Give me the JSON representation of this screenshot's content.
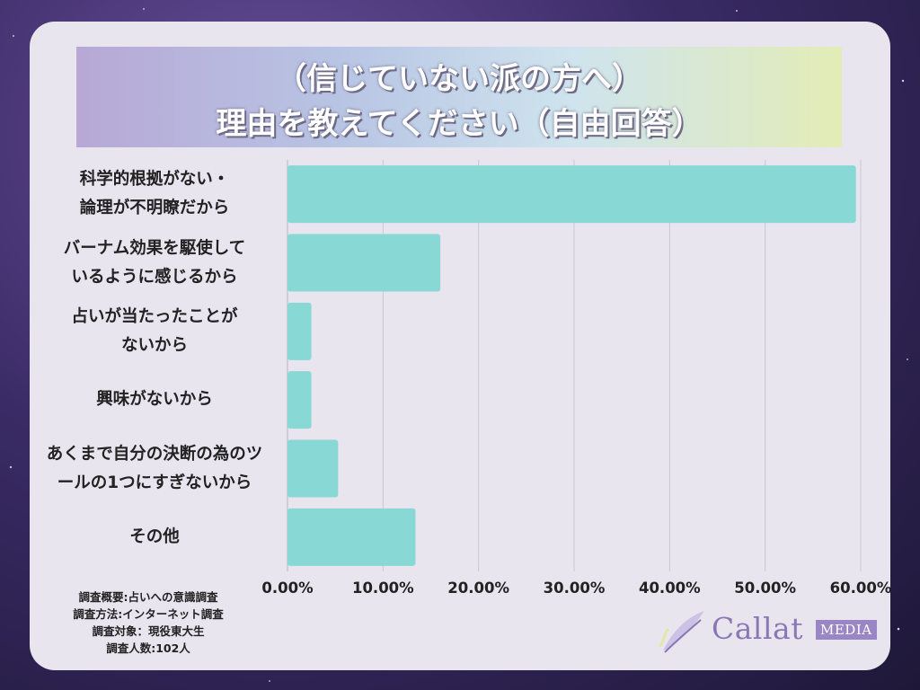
{
  "title": {
    "line1": "（信じていない派の方へ）",
    "line2": "理由を教えてください（自由回答）"
  },
  "chart_data": {
    "type": "bar",
    "orientation": "horizontal",
    "categories": [
      [
        "科学的根拠がない・",
        "論理が不明瞭だから"
      ],
      [
        "バーナム効果を駆使して",
        "いるように感じるから"
      ],
      [
        "占いが当たったことが",
        "ないから"
      ],
      [
        "興味がないから"
      ],
      [
        "あくまで自分の決断の為のツ",
        "ールの1つにすぎないから"
      ],
      [
        "その他"
      ]
    ],
    "values": [
      59.5,
      16.0,
      2.5,
      2.5,
      5.3,
      13.4
    ],
    "xlim": [
      0,
      60
    ],
    "ticks": [
      "0.00%",
      "10.00%",
      "20.00%",
      "30.00%",
      "40.00%",
      "50.00%",
      "60.00%"
    ],
    "tick_values": [
      0,
      10,
      20,
      30,
      40,
      50,
      60
    ],
    "grid": true,
    "bar_color": "#88d8d6"
  },
  "notes": [
    "調査概要:占いへの意識調査",
    "調査方法:インターネット調査",
    "調査対象：現役東大生",
    "調査人数:102人"
  ],
  "logo": {
    "text": "Callat",
    "badge": "MEDIA",
    "icon": "feather-icon"
  }
}
